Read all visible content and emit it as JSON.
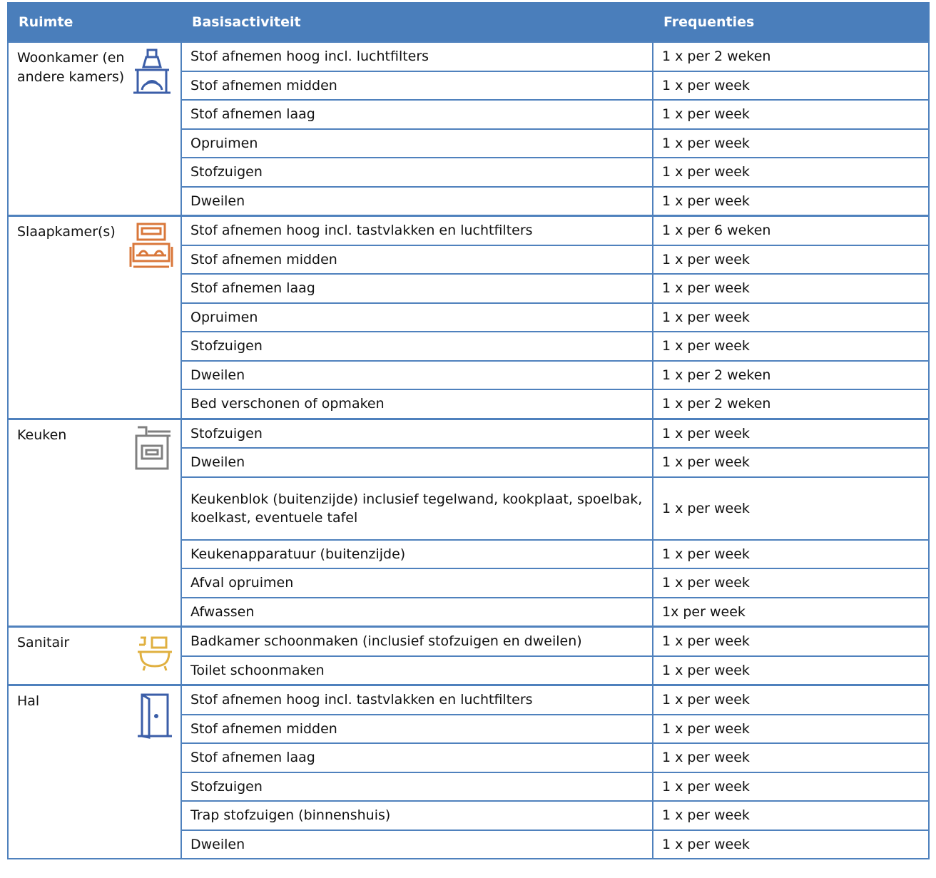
{
  "headers": {
    "room": "Ruimte",
    "activity": "Basisactiviteit",
    "frequency": "Frequenties"
  },
  "colors": {
    "header": "#4a7ebb",
    "border": "#4f81bd",
    "living_icon": "#3b5ea8",
    "bedroom_icon": "#d9773a",
    "kitchen_icon": "#808080",
    "sanitary_icon": "#e0b040",
    "hall_icon": "#3b5ea8"
  },
  "groups": [
    {
      "room": "Woonkamer (en andere kamers)",
      "icon": "fireplace-icon",
      "rows": [
        {
          "activity": "Stof afnemen hoog incl. luchtfilters",
          "frequency": "1 x per 2 weken"
        },
        {
          "activity": "Stof afnemen midden",
          "frequency": "1 x per week"
        },
        {
          "activity": "Stof afnemen laag",
          "frequency": "1 x per week"
        },
        {
          "activity": "Opruimen",
          "frequency": "1 x per week"
        },
        {
          "activity": "Stofzuigen",
          "frequency": "1 x per week"
        },
        {
          "activity": "Dweilen",
          "frequency": "1 x per week"
        }
      ]
    },
    {
      "room": "Slaapkamer(s)",
      "icon": "bed-icon",
      "rows": [
        {
          "activity": "Stof afnemen hoog incl. tastvlakken en luchtfilters",
          "frequency": "1 x per 6 weken"
        },
        {
          "activity": "Stof afnemen midden",
          "frequency": "1 x per week"
        },
        {
          "activity": "Stof afnemen laag",
          "frequency": "1 x per week"
        },
        {
          "activity": "Opruimen",
          "frequency": "1 x per week"
        },
        {
          "activity": "Stofzuigen",
          "frequency": "1 x per week"
        },
        {
          "activity": "Dweilen",
          "frequency": "1 x per 2 weken"
        },
        {
          "activity": "Bed verschonen of opmaken",
          "frequency": "1 x per 2 weken"
        }
      ]
    },
    {
      "room": "Keuken",
      "icon": "stove-icon",
      "rows": [
        {
          "activity": "Stofzuigen",
          "frequency": "1 x per week"
        },
        {
          "activity": "Dweilen",
          "frequency": "1 x per week"
        },
        {
          "activity": "Keukenblok (buitenzijde) inclusief tegelwand, kookplaat, spoelbak, koelkast, eventuele tafel",
          "frequency": "1 x per week",
          "tall": true
        },
        {
          "activity": "Keukenapparatuur (buitenzijde)",
          "frequency": "1 x per week"
        },
        {
          "activity": "Afval opruimen",
          "frequency": "1 x per week"
        },
        {
          "activity": "Afwassen",
          "frequency": "1x per week"
        }
      ]
    },
    {
      "room": "Sanitair",
      "icon": "bathtub-icon",
      "rows": [
        {
          "activity": "Badkamer schoonmaken (inclusief stofzuigen en dweilen)",
          "frequency": "1 x per week"
        },
        {
          "activity": "Toilet schoonmaken",
          "frequency": "1 x per week"
        }
      ]
    },
    {
      "room": "Hal",
      "icon": "door-icon",
      "rows": [
        {
          "activity": "Stof afnemen hoog incl. tastvlakken en luchtfilters",
          "frequency": "1 x per week"
        },
        {
          "activity": "Stof afnemen midden",
          "frequency": "1 x per week"
        },
        {
          "activity": "Stof afnemen laag",
          "frequency": "1 x per week"
        },
        {
          "activity": "Stofzuigen",
          "frequency": "1 x per week"
        },
        {
          "activity": "Trap stofzuigen (binnenshuis)",
          "frequency": "1 x per week"
        },
        {
          "activity": "Dweilen",
          "frequency": "1 x per week"
        }
      ]
    }
  ]
}
